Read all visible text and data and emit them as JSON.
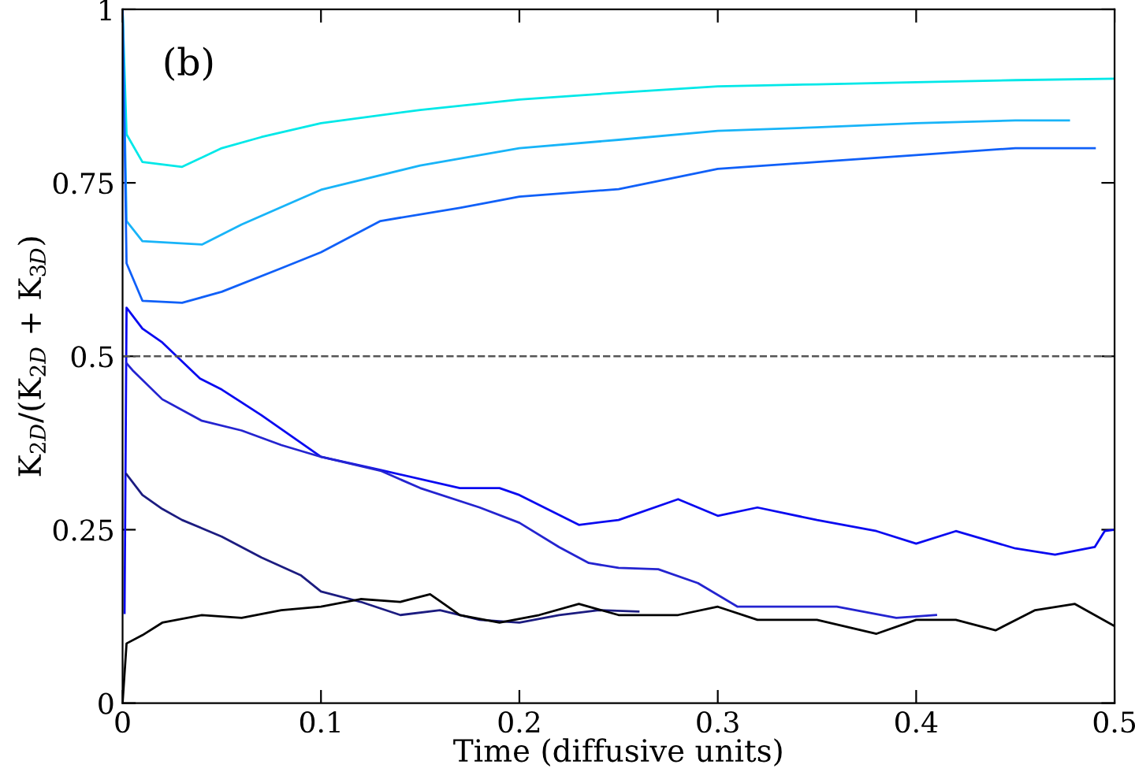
{
  "chart_data": {
    "type": "line",
    "xlabel": "Time (diffusive units)",
    "ylabel": "K$_{2D}$/(K$_{2D}$ + K$_{3D}$)",
    "annotations": [
      "(b)"
    ],
    "xlim": [
      0,
      0.5
    ],
    "ylim": [
      0,
      1
    ],
    "xticks": [
      0,
      0.1,
      0.2,
      0.3,
      0.4,
      0.5
    ],
    "yticks": [
      0,
      0.25,
      0.5,
      0.75,
      1
    ],
    "grid": false,
    "legend": false,
    "marker": "none",
    "line_style": "solid",
    "ref_lines": [
      {
        "axis": "y",
        "value": 0.5,
        "label": null,
        "color": "#555555",
        "line_style": "dashed"
      }
    ],
    "series": [
      {
        "color": "#00e8e8",
        "x": [
          0,
          0.002,
          0.01,
          0.03,
          0.05,
          0.07,
          0.1,
          0.15,
          0.2,
          0.25,
          0.3,
          0.35,
          0.4,
          0.45,
          0.5
        ],
        "values": [
          1,
          0.82,
          0.78,
          0.773,
          0.8,
          0.816,
          0.836,
          0.855,
          0.87,
          0.88,
          0.889,
          0.892,
          0.895,
          0.898,
          0.9
        ]
      },
      {
        "color": "#18b4f8",
        "x": [
          0,
          0.002,
          0.01,
          0.04,
          0.06,
          0.1,
          0.15,
          0.2,
          0.25,
          0.3,
          0.35,
          0.4,
          0.45,
          0.477
        ],
        "values": [
          1,
          0.695,
          0.666,
          0.661,
          0.69,
          0.74,
          0.775,
          0.8,
          0.812,
          0.825,
          0.83,
          0.836,
          0.84,
          0.84
        ]
      },
      {
        "color": "#1060f8",
        "x": [
          0,
          0.002,
          0.01,
          0.03,
          0.05,
          0.08,
          0.1,
          0.13,
          0.17,
          0.2,
          0.25,
          0.3,
          0.35,
          0.4,
          0.45,
          0.49
        ],
        "values": [
          1,
          0.634,
          0.58,
          0.577,
          0.593,
          0.627,
          0.65,
          0.695,
          0.714,
          0.73,
          0.741,
          0.77,
          0.78,
          0.79,
          0.8,
          0.8
        ]
      },
      {
        "color": "#0a0af0",
        "x": [
          0.001,
          0.002,
          0.01,
          0.02,
          0.039,
          0.05,
          0.07,
          0.1,
          0.13,
          0.17,
          0.19,
          0.2,
          0.23,
          0.25,
          0.28,
          0.3,
          0.32,
          0.35,
          0.38,
          0.4,
          0.42,
          0.45,
          0.47,
          0.49,
          0.495,
          0.5
        ],
        "values": [
          0.13,
          0.57,
          0.54,
          0.52,
          0.468,
          0.452,
          0.415,
          0.355,
          0.336,
          0.31,
          0.31,
          0.3,
          0.257,
          0.264,
          0.294,
          0.27,
          0.282,
          0.264,
          0.248,
          0.23,
          0.248,
          0.223,
          0.214,
          0.225,
          0.248,
          0.25
        ]
      },
      {
        "color": "#2424d0",
        "x": [
          0.002,
          0.005,
          0.02,
          0.04,
          0.06,
          0.08,
          0.1,
          0.13,
          0.15,
          0.18,
          0.2,
          0.22,
          0.235,
          0.25,
          0.27,
          0.29,
          0.31,
          0.33,
          0.36,
          0.39,
          0.41
        ],
        "values": [
          0.49,
          0.48,
          0.438,
          0.407,
          0.393,
          0.372,
          0.355,
          0.335,
          0.31,
          0.282,
          0.26,
          0.225,
          0.202,
          0.195,
          0.193,
          0.173,
          0.139,
          0.139,
          0.139,
          0.123,
          0.127
        ]
      },
      {
        "color": "#1c1c80",
        "x": [
          0.002,
          0.01,
          0.02,
          0.03,
          0.05,
          0.07,
          0.09,
          0.1,
          0.12,
          0.14,
          0.16,
          0.18,
          0.2,
          0.22,
          0.24,
          0.26
        ],
        "values": [
          0.33,
          0.3,
          0.28,
          0.264,
          0.24,
          0.21,
          0.184,
          0.161,
          0.146,
          0.127,
          0.134,
          0.12,
          0.116,
          0.127,
          0.134,
          0.132
        ]
      },
      {
        "color": "#000000",
        "x": [
          0,
          0.002,
          0.01,
          0.02,
          0.04,
          0.06,
          0.08,
          0.1,
          0.12,
          0.14,
          0.155,
          0.17,
          0.19,
          0.21,
          0.23,
          0.25,
          0.28,
          0.3,
          0.32,
          0.35,
          0.38,
          0.4,
          0.42,
          0.44,
          0.46,
          0.48,
          0.5
        ],
        "values": [
          0,
          0.086,
          0.098,
          0.116,
          0.127,
          0.123,
          0.134,
          0.139,
          0.15,
          0.146,
          0.157,
          0.127,
          0.116,
          0.127,
          0.143,
          0.127,
          0.127,
          0.139,
          0.12,
          0.12,
          0.1,
          0.12,
          0.12,
          0.105,
          0.134,
          0.143,
          0.111
        ]
      }
    ]
  }
}
